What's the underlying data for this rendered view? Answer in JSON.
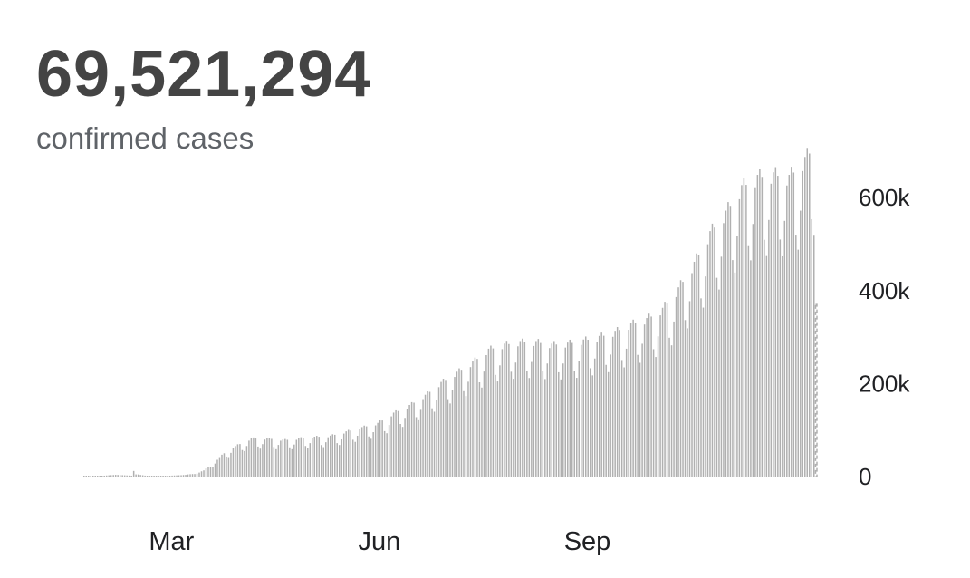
{
  "header": {
    "total": "69,521,294",
    "label": "confirmed cases"
  },
  "chart_data": {
    "type": "bar",
    "title": "",
    "xlabel": "",
    "ylabel": "",
    "ylim": [
      0,
      690000
    ],
    "y_ticks": [
      {
        "value": 0,
        "label": "0"
      },
      {
        "value": 200000,
        "label": "200k"
      },
      {
        "value": 400000,
        "label": "400k"
      },
      {
        "value": 600000,
        "label": "600k"
      }
    ],
    "x_ticks": [
      {
        "label": "Mar",
        "date": "2020-03-01"
      },
      {
        "label": "Jun",
        "date": "2020-06-01"
      },
      {
        "label": "Sep",
        "date": "2020-09-01"
      }
    ],
    "grid": false,
    "legend": "none",
    "bar_color": "#b0b0b0",
    "last_bar_dashed": true,
    "x_start": "2020-01-22",
    "x_end": "2020-12-11",
    "series": [
      {
        "points": [
          [
            "2020-01-22",
            600
          ],
          [
            "2020-01-31",
            2000
          ],
          [
            "2020-02-05",
            3800
          ],
          [
            "2020-02-12",
            2000
          ],
          [
            "2020-02-13",
            15000
          ],
          [
            "2020-02-14",
            5000
          ],
          [
            "2020-02-20",
            700
          ],
          [
            "2020-02-27",
            1500
          ],
          [
            "2020-03-05",
            3000
          ],
          [
            "2020-03-10",
            5000
          ],
          [
            "2020-03-15",
            12000
          ],
          [
            "2020-03-20",
            30000
          ],
          [
            "2020-03-25",
            50000
          ],
          [
            "2020-03-30",
            62000
          ],
          [
            "2020-04-05",
            75000
          ],
          [
            "2020-04-12",
            75000
          ],
          [
            "2020-04-20",
            72000
          ],
          [
            "2020-04-30",
            77000
          ],
          [
            "2020-05-10",
            80000
          ],
          [
            "2020-05-20",
            92000
          ],
          [
            "2020-05-31",
            105000
          ],
          [
            "2020-06-07",
            125000
          ],
          [
            "2020-06-14",
            140000
          ],
          [
            "2020-06-21",
            160000
          ],
          [
            "2020-06-28",
            185000
          ],
          [
            "2020-07-05",
            205000
          ],
          [
            "2020-07-12",
            225000
          ],
          [
            "2020-07-19",
            250000
          ],
          [
            "2020-07-26",
            260000
          ],
          [
            "2020-08-02",
            265000
          ],
          [
            "2020-08-09",
            265000
          ],
          [
            "2020-08-16",
            260000
          ],
          [
            "2020-08-23",
            262000
          ],
          [
            "2020-08-30",
            268000
          ],
          [
            "2020-09-06",
            275000
          ],
          [
            "2020-09-13",
            285000
          ],
          [
            "2020-09-20",
            300000
          ],
          [
            "2020-09-27",
            310000
          ],
          [
            "2020-10-04",
            330000
          ],
          [
            "2020-10-11",
            370000
          ],
          [
            "2020-10-18",
            420000
          ],
          [
            "2020-10-25",
            480000
          ],
          [
            "2020-11-01",
            520000
          ],
          [
            "2020-11-08",
            570000
          ],
          [
            "2020-11-15",
            590000
          ],
          [
            "2020-11-22",
            595000
          ],
          [
            "2020-11-29",
            590000
          ],
          [
            "2020-12-06",
            625000
          ],
          [
            "2020-12-10",
            650000
          ]
        ]
      }
    ]
  }
}
